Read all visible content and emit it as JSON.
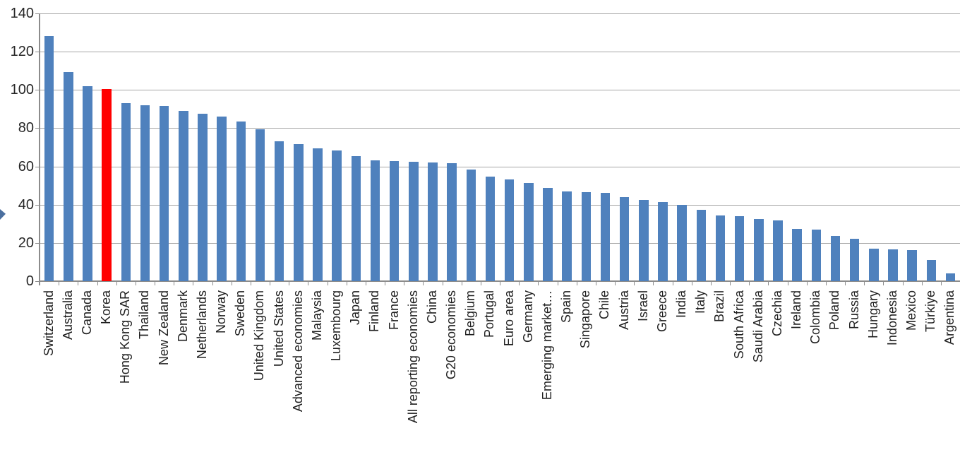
{
  "chart_data": {
    "type": "bar",
    "title": "",
    "xlabel": "",
    "ylabel": "",
    "ylim": [
      0,
      140
    ],
    "yticks": [
      0,
      20,
      40,
      60,
      80,
      100,
      120,
      140
    ],
    "grid": true,
    "legend_position": "none",
    "bar_color": "#4F81BD",
    "highlight_color": "#FF0000",
    "highlighted_category": "Korea",
    "categories": [
      "Switzerland",
      "Australia",
      "Canada",
      "Korea",
      "Hong Kong SAR",
      "Thailand",
      "New Zealand",
      "Denmark",
      "Netherlands",
      "Norway",
      "Sweden",
      "United Kingdom",
      "United States",
      "Advanced economies",
      "Malaysia",
      "Luxembourg",
      "Japan",
      "Finland",
      "France",
      "All reporting economies",
      "China",
      "G20 economies",
      "Belgium",
      "Portugal",
      "Euro area",
      "Germany",
      "Emerging market…",
      "Spain",
      "Singapore",
      "Chile",
      "Austria",
      "Israel",
      "Greece",
      "India",
      "Italy",
      "Brazil",
      "South Africa",
      "Saudi Arabia",
      "Czechia",
      "Ireland",
      "Colombia",
      "Poland",
      "Russia",
      "Hungary",
      "Indonesia",
      "Mexico",
      "Türkiye",
      "Argentina"
    ],
    "values": [
      128,
      109.5,
      102,
      100.5,
      93,
      92,
      91.5,
      89,
      87.5,
      86,
      83.5,
      79.5,
      73,
      71.5,
      69.5,
      68.5,
      65.5,
      63,
      62.7,
      62.4,
      62,
      61.8,
      58.5,
      54.8,
      53.3,
      51.5,
      48.7,
      46.8,
      46.4,
      46.2,
      44,
      42.3,
      41.5,
      40,
      37.3,
      34.5,
      34,
      32.5,
      31.8,
      27.5,
      27,
      23.5,
      22,
      17,
      16.5,
      16.2,
      11,
      4
    ]
  },
  "colors": {
    "background": "#FFFFFF",
    "gridline": "#A6A6A6",
    "axis": "#8C8C8C",
    "text": "#262626",
    "edge_arrow": "#4B6F9F"
  }
}
